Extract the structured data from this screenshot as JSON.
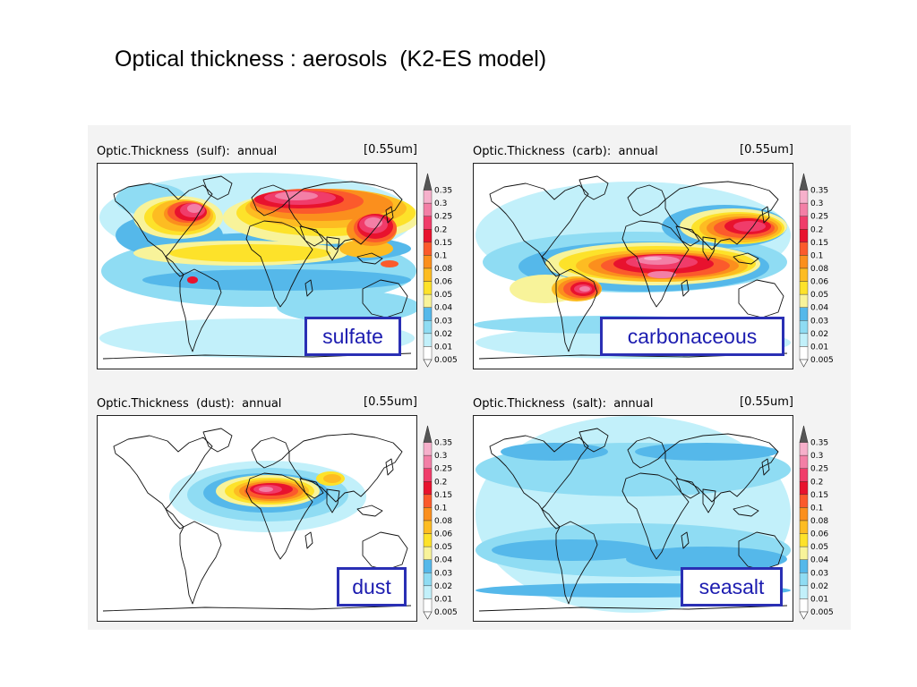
{
  "slide": {
    "title": "Optical thickness : aerosols  (K2-ES model)"
  },
  "colors": {
    "levels_hex": [
      "#ffffff",
      "#c2f0fa",
      "#8fdcf3",
      "#55b8ea",
      "#f8f39a",
      "#fde22a",
      "#fdbc22",
      "#fb8f1d",
      "#fb5a2c",
      "#e8122e",
      "#f03c6a",
      "#f37fa6",
      "#f6b0cb",
      "#555555"
    ],
    "tag_border": "#2a2fb4",
    "tag_text": "#1c1cb0",
    "coast": "#111111"
  },
  "colorbar": {
    "labels": [
      "0.35",
      "0.3",
      "0.25",
      "0.2",
      "0.15",
      "0.1",
      "0.08",
      "0.06",
      "0.05",
      "0.04",
      "0.03",
      "0.02",
      "0.01",
      "0.005"
    ]
  },
  "panels": [
    {
      "title": "Optic.Thickness  (sulf):  annual",
      "unit": "[0.55um]",
      "tag": "sulfate"
    },
    {
      "title": "Optic.Thickness  (carb):  annual",
      "unit": "[0.55um]",
      "tag": "carbonaceous"
    },
    {
      "title": "Optic.Thickness  (dust):  annual",
      "unit": "[0.55um]",
      "tag": "dust"
    },
    {
      "title": "Optic.Thickness  (salt):  annual",
      "unit": "[0.55um]",
      "tag": "seasalt"
    }
  ]
}
